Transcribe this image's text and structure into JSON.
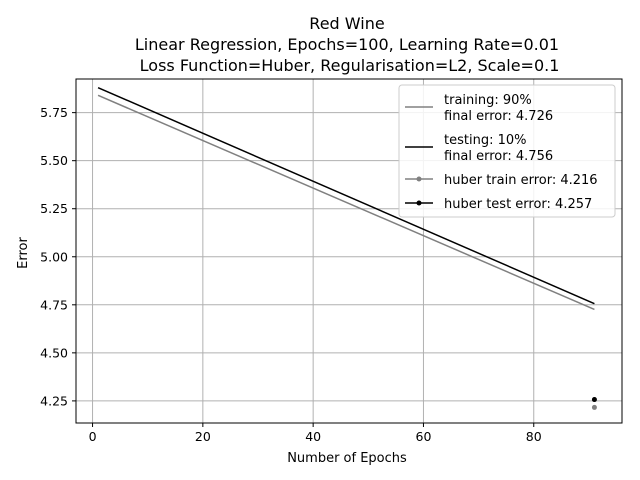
{
  "chart_data": {
    "type": "line",
    "title_lines": [
      "Red Wine",
      "Linear Regression, Epochs=100, Learning Rate=0.01",
      " Loss Function=Huber, Regularisation=L2, Scale=0.1"
    ],
    "xlabel": "Number of Epochs",
    "ylabel": "Error",
    "xlim": [
      -3,
      96
    ],
    "ylim": [
      4.135,
      5.925
    ],
    "xticks": [
      0,
      20,
      40,
      60,
      80
    ],
    "yticks": [
      4.25,
      4.5,
      4.75,
      5.0,
      5.25,
      5.5,
      5.75
    ],
    "ytick_labels": [
      "4.25",
      "4.50",
      "4.75",
      "5.00",
      "5.25",
      "5.50",
      "5.75"
    ],
    "grid": true,
    "legend_position": "upper right",
    "series": [
      {
        "name": "training: 90%\nfinal error: 4.726",
        "label_lines": [
          "training: 90%",
          "final error: 4.726"
        ],
        "color": "#808080",
        "style": "line",
        "x": [
          1,
          91
        ],
        "y": [
          5.84,
          4.726
        ]
      },
      {
        "name": "testing: 10%\nfinal error: 4.756",
        "label_lines": [
          "testing: 10%",
          "final error: 4.756"
        ],
        "color": "#000000",
        "style": "line",
        "x": [
          1,
          91
        ],
        "y": [
          5.88,
          4.756
        ]
      },
      {
        "name": "huber train error: 4.216",
        "label_lines": [
          "huber train error: 4.216"
        ],
        "color": "#808080",
        "style": "line-marker",
        "x": [
          91
        ],
        "y": [
          4.216
        ]
      },
      {
        "name": "huber test error: 4.257",
        "label_lines": [
          "huber test error: 4.257"
        ],
        "color": "#000000",
        "style": "line-marker",
        "x": [
          91
        ],
        "y": [
          4.257
        ]
      }
    ]
  }
}
